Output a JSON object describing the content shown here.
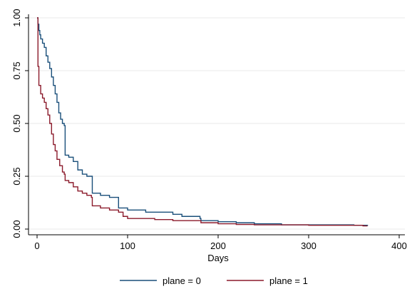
{
  "chart_data": {
    "type": "line",
    "title": "",
    "xlabel": "Days",
    "ylabel": "",
    "xlim": [
      0,
      400
    ],
    "ylim": [
      0,
      1
    ],
    "x_ticks": [
      "0",
      "100",
      "200",
      "300",
      "400"
    ],
    "y_ticks": [
      "0.00",
      "0.25",
      "0.50",
      "0.75",
      "1.00"
    ],
    "grid": true,
    "legend_position": "bottom",
    "series": [
      {
        "name": "plane = 0",
        "color": "#1a4f7a",
        "points": [
          [
            0,
            1.0
          ],
          [
            1,
            0.97
          ],
          [
            2,
            0.94
          ],
          [
            3,
            0.92
          ],
          [
            4,
            0.9
          ],
          [
            6,
            0.88
          ],
          [
            8,
            0.86
          ],
          [
            10,
            0.82
          ],
          [
            12,
            0.79
          ],
          [
            14,
            0.76
          ],
          [
            16,
            0.72
          ],
          [
            18,
            0.68
          ],
          [
            20,
            0.64
          ],
          [
            22,
            0.6
          ],
          [
            24,
            0.55
          ],
          [
            26,
            0.52
          ],
          [
            28,
            0.5
          ],
          [
            30,
            0.49
          ],
          [
            31,
            0.35
          ],
          [
            35,
            0.34
          ],
          [
            40,
            0.32
          ],
          [
            45,
            0.28
          ],
          [
            50,
            0.26
          ],
          [
            55,
            0.25
          ],
          [
            60,
            0.25
          ],
          [
            61,
            0.17
          ],
          [
            70,
            0.16
          ],
          [
            80,
            0.15
          ],
          [
            90,
            0.1
          ],
          [
            95,
            0.1
          ],
          [
            100,
            0.09
          ],
          [
            120,
            0.08
          ],
          [
            121,
            0.08
          ],
          [
            122,
            0.08
          ],
          [
            123,
            0.08
          ],
          [
            124,
            0.08
          ],
          [
            125,
            0.08
          ],
          [
            150,
            0.07
          ],
          [
            160,
            0.06
          ],
          [
            180,
            0.05
          ],
          [
            181,
            0.04
          ],
          [
            200,
            0.035
          ],
          [
            210,
            0.035
          ],
          [
            220,
            0.03
          ],
          [
            230,
            0.03
          ],
          [
            240,
            0.025
          ],
          [
            260,
            0.025
          ],
          [
            270,
            0.02
          ],
          [
            300,
            0.02
          ],
          [
            340,
            0.02
          ],
          [
            350,
            0.018
          ],
          [
            365,
            0.015
          ]
        ]
      },
      {
        "name": "plane = 1",
        "color": "#8b1a2b",
        "points": [
          [
            0,
            1.0
          ],
          [
            1,
            0.77
          ],
          [
            2,
            0.68
          ],
          [
            4,
            0.64
          ],
          [
            6,
            0.62
          ],
          [
            8,
            0.6
          ],
          [
            10,
            0.57
          ],
          [
            12,
            0.54
          ],
          [
            14,
            0.5
          ],
          [
            16,
            0.45
          ],
          [
            18,
            0.4
          ],
          [
            20,
            0.37
          ],
          [
            22,
            0.33
          ],
          [
            25,
            0.3
          ],
          [
            28,
            0.27
          ],
          [
            30,
            0.26
          ],
          [
            31,
            0.23
          ],
          [
            35,
            0.22
          ],
          [
            40,
            0.2
          ],
          [
            45,
            0.18
          ],
          [
            50,
            0.17
          ],
          [
            55,
            0.16
          ],
          [
            60,
            0.15
          ],
          [
            61,
            0.11
          ],
          [
            70,
            0.1
          ],
          [
            80,
            0.09
          ],
          [
            90,
            0.08
          ],
          [
            95,
            0.06
          ],
          [
            100,
            0.05
          ],
          [
            120,
            0.05
          ],
          [
            130,
            0.045
          ],
          [
            150,
            0.04
          ],
          [
            180,
            0.04
          ],
          [
            181,
            0.03
          ],
          [
            200,
            0.025
          ],
          [
            210,
            0.025
          ],
          [
            220,
            0.022
          ],
          [
            240,
            0.02
          ],
          [
            270,
            0.02
          ],
          [
            300,
            0.018
          ],
          [
            330,
            0.018
          ],
          [
            360,
            0.015
          ],
          [
            365,
            0.015
          ]
        ]
      }
    ]
  }
}
